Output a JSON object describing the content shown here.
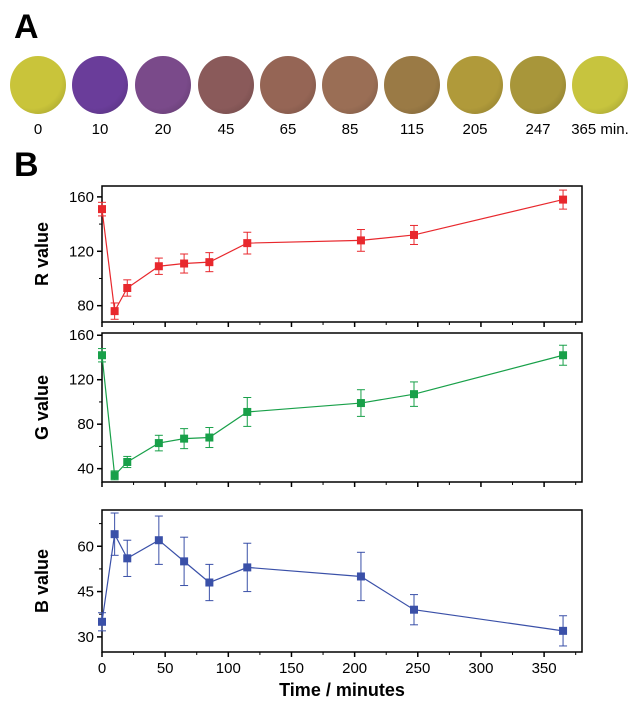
{
  "panelA": {
    "letter": "A",
    "samples": [
      {
        "label": "0",
        "color": "#c9c43a"
      },
      {
        "label": "10",
        "color": "#6a3d9a"
      },
      {
        "label": "20",
        "color": "#7a4a8a"
      },
      {
        "label": "45",
        "color": "#8a5a5a"
      },
      {
        "label": "65",
        "color": "#956555"
      },
      {
        "label": "85",
        "color": "#9a6e55"
      },
      {
        "label": "115",
        "color": "#9a7a45"
      },
      {
        "label": "205",
        "color": "#b09a3a"
      },
      {
        "label": "247",
        "color": "#a8963a"
      },
      {
        "label": "365 min.",
        "color": "#c7c43e"
      }
    ]
  },
  "panelB": {
    "letter": "B"
  },
  "chart_data": [
    {
      "type": "line",
      "ylabel": "R value",
      "color": "#e8282d",
      "x": [
        0,
        10,
        20,
        45,
        65,
        85,
        115,
        205,
        247,
        365
      ],
      "y": [
        151,
        76,
        93,
        109,
        111,
        112,
        126,
        128,
        132,
        158
      ],
      "err": [
        5,
        6,
        6,
        6,
        7,
        7,
        8,
        8,
        7,
        7
      ],
      "xlim": [
        0,
        380
      ],
      "ylim": [
        68,
        168
      ],
      "yticks": [
        80,
        120,
        160
      ]
    },
    {
      "type": "line",
      "ylabel": "G value",
      "color": "#18a049",
      "x": [
        0,
        10,
        20,
        45,
        65,
        85,
        115,
        205,
        247,
        365
      ],
      "y": [
        142,
        34,
        46,
        63,
        67,
        68,
        91,
        99,
        107,
        142
      ],
      "err": [
        6,
        4,
        5,
        7,
        9,
        9,
        13,
        12,
        11,
        9
      ],
      "xlim": [
        0,
        380
      ],
      "ylim": [
        28,
        162
      ],
      "yticks": [
        40,
        80,
        120,
        160
      ]
    },
    {
      "type": "line",
      "ylabel": "B value",
      "color": "#3a50a8",
      "x": [
        0,
        10,
        20,
        45,
        65,
        85,
        115,
        205,
        247,
        365
      ],
      "y": [
        35,
        64,
        56,
        62,
        55,
        48,
        53,
        50,
        39,
        32
      ],
      "err": [
        3,
        7,
        6,
        8,
        8,
        6,
        8,
        8,
        5,
        5
      ],
      "xlim": [
        0,
        380
      ],
      "ylim": [
        25,
        72
      ],
      "yticks": [
        30,
        45,
        60
      ],
      "xticks": [
        0,
        50,
        100,
        150,
        200,
        250,
        300,
        350
      ],
      "xlabel": "Time / minutes"
    }
  ]
}
